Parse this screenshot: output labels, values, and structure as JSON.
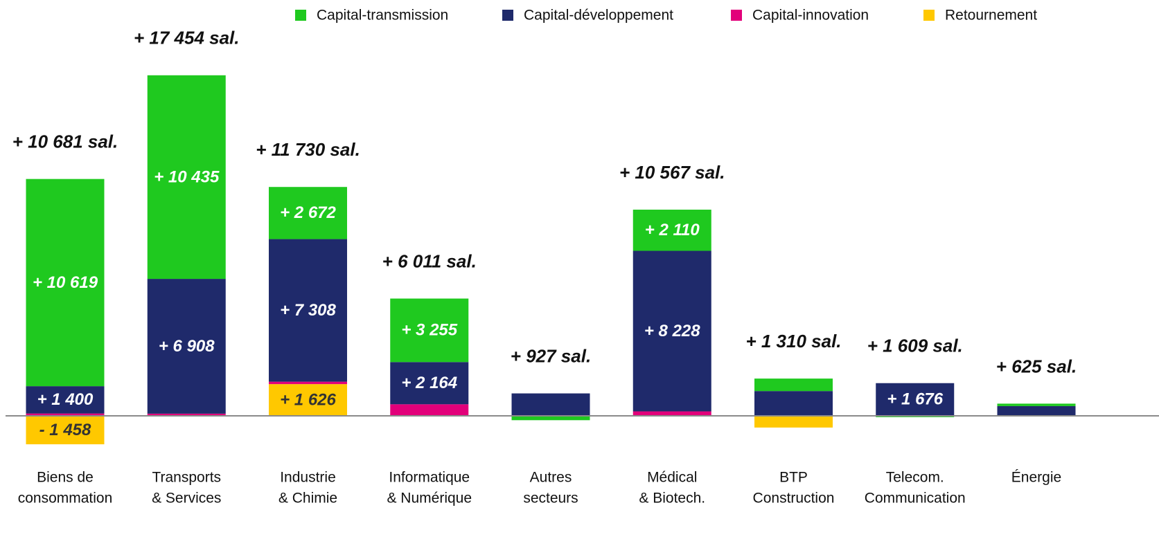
{
  "chart_data": {
    "type": "stacked_bar",
    "categories": [
      [
        "Biens de",
        "consommation"
      ],
      [
        "Transports",
        "& Services"
      ],
      [
        "Industrie",
        "& Chimie"
      ],
      [
        "Informatique",
        "& Numérique"
      ],
      [
        "Autres",
        "secteurs"
      ],
      [
        "Médical",
        "& Biotech."
      ],
      [
        "BTP",
        "Construction"
      ],
      [
        "Telecom.",
        "Communication"
      ],
      [
        "Énergie"
      ]
    ],
    "series": [
      {
        "name": "Retournement",
        "color": "#ffc800",
        "values": [
          -1458,
          0,
          1626,
          0,
          0,
          0,
          -600,
          0,
          0
        ],
        "value_labels": [
          "- 1 458",
          null,
          "+ 1 626",
          null,
          null,
          null,
          null,
          null,
          null
        ]
      },
      {
        "name": "Capital-innovation",
        "color": "#e2007a",
        "values": [
          120,
          111,
          124,
          592,
          0,
          229,
          0,
          0,
          0
        ],
        "value_labels": [
          null,
          null,
          null,
          null,
          null,
          null,
          null,
          null,
          null
        ]
      },
      {
        "name": "Capital-développement",
        "color": "#1f2a6b",
        "values": [
          1400,
          6908,
          7308,
          2164,
          1150,
          8228,
          1270,
          1676,
          500
        ],
        "value_labels": [
          "+ 1 400",
          "+ 6 908",
          "+ 7 308",
          "+ 2 164",
          null,
          "+ 8 228",
          null,
          "+ 1 676",
          null
        ]
      },
      {
        "name": "Capital-transmission",
        "color": "#1fc91f",
        "values": [
          10619,
          10435,
          2672,
          3255,
          -223,
          2110,
          640,
          -67,
          125
        ],
        "value_labels": [
          "+ 10 619",
          "+ 10 435",
          "+ 2 672",
          "+ 3 255",
          null,
          "+ 2 110",
          null,
          null,
          null
        ]
      }
    ],
    "totals": [
      10681,
      17454,
      11730,
      6011,
      927,
      10567,
      1310,
      1609,
      625
    ],
    "total_labels": [
      "+ 10 681 sal.",
      "+ 17 454 sal.",
      "+ 11 730 sal.",
      "+ 6 011 sal.",
      "+ 927 sal.",
      "+ 10 567 sal.",
      "+ 1 310 sal.",
      "+ 1 609 sal.",
      "+ 625 sal."
    ],
    "legend_order": [
      3,
      2,
      1,
      0
    ],
    "ylim": [
      -5000,
      20000
    ]
  }
}
